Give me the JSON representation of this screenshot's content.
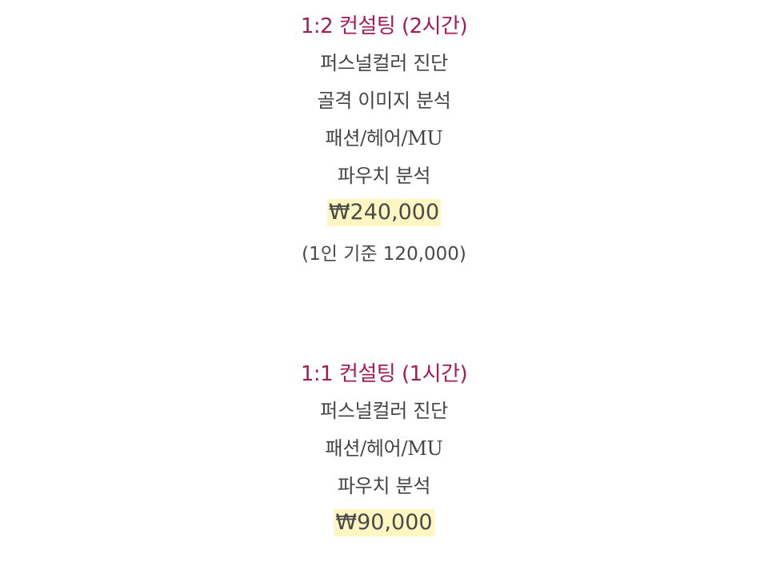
{
  "plans": [
    {
      "title": "1:2 컨설팅 (2시간)",
      "features": [
        "퍼스널컬러 진단",
        "골격 이미지 분석",
        "패션/헤어/MU",
        "파우치 분석"
      ],
      "price": "₩240,000",
      "note": "(1인 기준 120,000)"
    },
    {
      "title": "1:1 컨설팅 (1시간)",
      "features": [
        "퍼스널컬러 진단",
        "패션/헤어/MU",
        "파우치 분석"
      ],
      "price": "₩90,000"
    }
  ],
  "colors": {
    "title": "#a31c5a",
    "text": "#444444",
    "price_highlight": "#fff6c2",
    "background": "#ffffff"
  }
}
